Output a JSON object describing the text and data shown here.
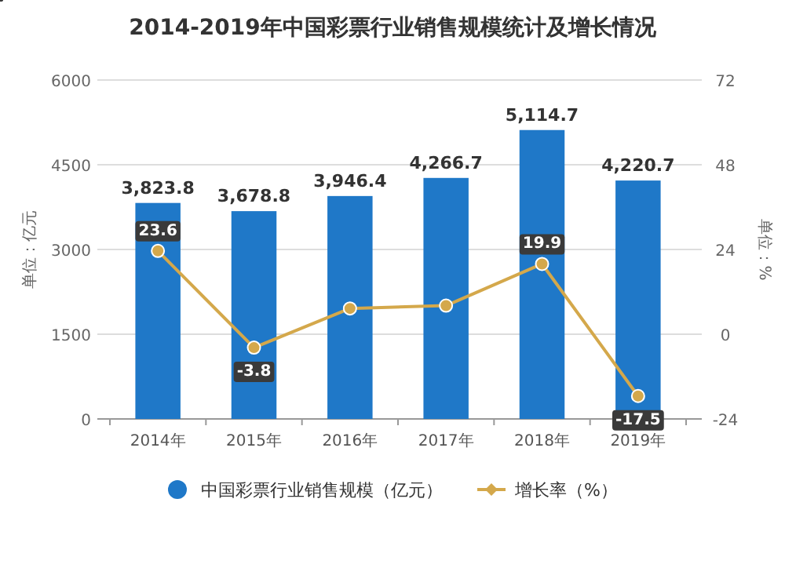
{
  "chart_data": {
    "type": "bar",
    "title": "2014-2019年中国彩票行业销售规模统计及增长情况",
    "ylabel": "单位：亿元",
    "y2label": "单位：%",
    "categories": [
      "2014年",
      "2015年",
      "2016年",
      "2017年",
      "2018年",
      "2019年"
    ],
    "series": [
      {
        "name": "中国彩票行业销售规模（亿元）",
        "color": "#1f78c8",
        "values": [
          3823.8,
          3678.8,
          3946.4,
          4266.7,
          5114.7,
          4220.7
        ],
        "value_labels": [
          "3,823.8",
          "3,678.8",
          "3,946.4",
          "4,266.7",
          "5,114.7",
          "4,220.7"
        ]
      },
      {
        "name": "增长率（%）",
        "type": "line",
        "axis": "y2",
        "color": "#d4a84b",
        "values": [
          23.6,
          -3.8,
          7.3,
          8.1,
          19.9,
          -17.5
        ],
        "value_labels": [
          "23.6",
          "-3.8",
          null,
          null,
          "19.9",
          "-17.5"
        ]
      }
    ],
    "ylim": [
      0,
      6000
    ],
    "yticks": [
      0,
      1500,
      3000,
      4500,
      6000
    ],
    "y2lim": [
      -24,
      72
    ],
    "y2ticks": [
      -24,
      0,
      24,
      48,
      72
    ],
    "grid": "y",
    "legend": "bottom",
    "marker": "circle"
  }
}
